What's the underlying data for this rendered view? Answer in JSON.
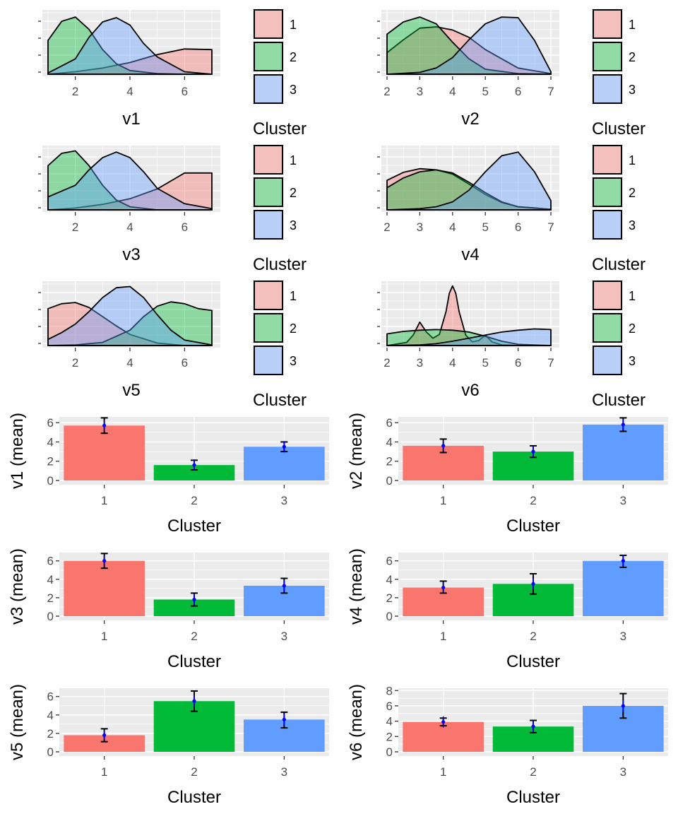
{
  "cluster_colors": {
    "1": "#F8766D",
    "2": "#00BA38",
    "3": "#619CFF"
  },
  "legend": {
    "title": "Cluster",
    "labels": [
      "1",
      "2",
      "3"
    ]
  },
  "chart_data": [
    {
      "type": "area",
      "xlabel": "v1",
      "xticks": [
        2,
        4,
        6
      ],
      "xlim": [
        1,
        7
      ],
      "series": [
        {
          "name": "1",
          "x": [
            1,
            2,
            3,
            4,
            5,
            6,
            7
          ],
          "y": [
            0.0,
            0.04,
            0.1,
            0.19,
            0.32,
            0.41,
            0.4
          ]
        },
        {
          "name": "2",
          "x": [
            1,
            1.5,
            2,
            2.5,
            3,
            3.5,
            4,
            5,
            6,
            7
          ],
          "y": [
            0.55,
            0.86,
            0.93,
            0.73,
            0.4,
            0.17,
            0.06,
            0.01,
            0.0,
            0.0
          ]
        },
        {
          "name": "3",
          "x": [
            1,
            2,
            2.5,
            3,
            3.5,
            4,
            4.5,
            5,
            6,
            7
          ],
          "y": [
            0.02,
            0.25,
            0.6,
            0.85,
            0.92,
            0.8,
            0.5,
            0.28,
            0.04,
            0.0
          ]
        }
      ]
    },
    {
      "type": "area",
      "xlabel": "v2",
      "xticks": [
        2,
        3,
        4,
        5,
        6,
        7
      ],
      "xlim": [
        2,
        7
      ],
      "series": [
        {
          "name": "1",
          "x": [
            2,
            2.5,
            3,
            3.5,
            4,
            4.5,
            5,
            6,
            7
          ],
          "y": [
            0.35,
            0.56,
            0.75,
            0.77,
            0.72,
            0.6,
            0.4,
            0.1,
            0.01
          ]
        },
        {
          "name": "2",
          "x": [
            2,
            2.5,
            3,
            3.5,
            4,
            4.5,
            5,
            6,
            7
          ],
          "y": [
            0.65,
            0.85,
            0.93,
            0.82,
            0.52,
            0.25,
            0.08,
            0.01,
            0.0
          ]
        },
        {
          "name": "3",
          "x": [
            2,
            3,
            3.5,
            4,
            4.5,
            5,
            5.5,
            6,
            6.5,
            7
          ],
          "y": [
            0.0,
            0.03,
            0.1,
            0.27,
            0.56,
            0.82,
            0.93,
            0.92,
            0.55,
            0.04
          ]
        }
      ]
    },
    {
      "type": "area",
      "xlabel": "v3",
      "xticks": [
        2,
        4,
        6
      ],
      "xlim": [
        1,
        7
      ],
      "series": [
        {
          "name": "1",
          "x": [
            1,
            2,
            3,
            4,
            5,
            6,
            7
          ],
          "y": [
            0.0,
            0.03,
            0.09,
            0.18,
            0.34,
            0.6,
            0.6
          ]
        },
        {
          "name": "2",
          "x": [
            1,
            1.5,
            2,
            2.5,
            3,
            3.5,
            4,
            5,
            6,
            7
          ],
          "y": [
            0.72,
            0.92,
            0.96,
            0.72,
            0.4,
            0.16,
            0.05,
            0.0,
            0.0,
            0.0
          ]
        },
        {
          "name": "3",
          "x": [
            1,
            2,
            2.5,
            3,
            3.5,
            4,
            4.5,
            5,
            6,
            7
          ],
          "y": [
            0.21,
            0.4,
            0.65,
            0.85,
            0.94,
            0.85,
            0.62,
            0.35,
            0.1,
            0.02
          ]
        }
      ]
    },
    {
      "type": "area",
      "xlabel": "v4",
      "xticks": [
        2,
        3,
        4,
        5,
        6,
        7
      ],
      "xlim": [
        2,
        7
      ],
      "series": [
        {
          "name": "1",
          "x": [
            2,
            2.5,
            3,
            3.5,
            4,
            4.5,
            5,
            5.5,
            6,
            7
          ],
          "y": [
            0.48,
            0.61,
            0.67,
            0.65,
            0.58,
            0.42,
            0.25,
            0.12,
            0.05,
            0.01
          ]
        },
        {
          "name": "2",
          "x": [
            2,
            2.5,
            3,
            3.5,
            4,
            4.5,
            5,
            5.5,
            6,
            7
          ],
          "y": [
            0.36,
            0.52,
            0.62,
            0.65,
            0.6,
            0.45,
            0.28,
            0.13,
            0.05,
            0.01
          ]
        },
        {
          "name": "3",
          "x": [
            2,
            3,
            3.5,
            4,
            4.5,
            5,
            5.5,
            6,
            6.5,
            7
          ],
          "y": [
            0.0,
            0.02,
            0.05,
            0.13,
            0.32,
            0.62,
            0.88,
            0.94,
            0.62,
            0.15
          ]
        }
      ]
    },
    {
      "type": "area",
      "xlabel": "v5",
      "xticks": [
        2,
        4,
        6
      ],
      "xlim": [
        1,
        7
      ],
      "series": [
        {
          "name": "1",
          "x": [
            1,
            1.5,
            2,
            2.5,
            3,
            3.5,
            4,
            5,
            6,
            7
          ],
          "y": [
            0.6,
            0.68,
            0.7,
            0.62,
            0.47,
            0.32,
            0.18,
            0.04,
            0.0,
            0.0
          ]
        },
        {
          "name": "2",
          "x": [
            1,
            2,
            3,
            4,
            4.5,
            5,
            5.5,
            6,
            6.5,
            7
          ],
          "y": [
            0.0,
            0.01,
            0.05,
            0.25,
            0.47,
            0.64,
            0.71,
            0.68,
            0.6,
            0.57
          ]
        },
        {
          "name": "3",
          "x": [
            1,
            1.5,
            2,
            2.5,
            3,
            3.5,
            4,
            4.5,
            5,
            5.5,
            6,
            7
          ],
          "y": [
            0.1,
            0.21,
            0.35,
            0.55,
            0.78,
            0.94,
            0.96,
            0.78,
            0.5,
            0.25,
            0.09,
            0.01
          ]
        }
      ]
    },
    {
      "type": "area",
      "xlabel": "v6",
      "xticks": [
        2,
        3,
        4,
        5,
        6,
        7
      ],
      "xlim": [
        2,
        7
      ],
      "series": [
        {
          "name": "1",
          "x": [
            2,
            2.6,
            2.8,
            3,
            3.2,
            3.4,
            3.6,
            3.8,
            3.9,
            4,
            4.1,
            4.2,
            4.4,
            4.6,
            4.8,
            5,
            5.2,
            5.5,
            6,
            7
          ],
          "y": [
            0.0,
            0.05,
            0.17,
            0.38,
            0.22,
            0.12,
            0.18,
            0.55,
            0.85,
            0.97,
            0.85,
            0.55,
            0.17,
            0.06,
            0.08,
            0.17,
            0.06,
            0.01,
            0.0,
            0.0
          ]
        },
        {
          "name": "2",
          "x": [
            2,
            2.5,
            3,
            3.5,
            4,
            4.5,
            5,
            5.5,
            6,
            7
          ],
          "y": [
            0.19,
            0.23,
            0.25,
            0.26,
            0.25,
            0.22,
            0.15,
            0.07,
            0.02,
            0.0
          ]
        },
        {
          "name": "3",
          "x": [
            2,
            3,
            3.5,
            4,
            4.5,
            5,
            5.5,
            6,
            6.5,
            7
          ],
          "y": [
            0.0,
            0.01,
            0.03,
            0.07,
            0.12,
            0.17,
            0.22,
            0.25,
            0.27,
            0.26
          ]
        }
      ]
    },
    {
      "type": "bar",
      "categories": [
        "1",
        "2",
        "3"
      ],
      "values": [
        5.7,
        1.6,
        3.5
      ],
      "errors": [
        [
          4.9,
          6.5
        ],
        [
          1.1,
          2.1
        ],
        [
          3.0,
          4.0
        ]
      ],
      "ylim": [
        0,
        6.6
      ],
      "yticks": [
        0,
        2,
        4,
        6
      ],
      "xlabel": "Cluster",
      "ylabel": "v1 (mean)"
    },
    {
      "type": "bar",
      "categories": [
        "1",
        "2",
        "3"
      ],
      "values": [
        3.6,
        3.0,
        5.8
      ],
      "errors": [
        [
          2.9,
          4.3
        ],
        [
          2.4,
          3.6
        ],
        [
          5.1,
          6.5
        ]
      ],
      "ylim": [
        0,
        6.6
      ],
      "yticks": [
        0,
        2,
        4,
        6
      ],
      "xlabel": "Cluster",
      "ylabel": "v2 (mean)"
    },
    {
      "type": "bar",
      "categories": [
        "1",
        "2",
        "3"
      ],
      "values": [
        6.0,
        1.8,
        3.3
      ],
      "errors": [
        [
          5.2,
          6.8
        ],
        [
          1.1,
          2.5
        ],
        [
          2.5,
          4.1
        ]
      ],
      "ylim": [
        0,
        6.9
      ],
      "yticks": [
        0,
        2,
        4,
        6
      ],
      "xlabel": "Cluster",
      "ylabel": "v3 (mean)"
    },
    {
      "type": "bar",
      "categories": [
        "1",
        "2",
        "3"
      ],
      "values": [
        3.1,
        3.5,
        6.0
      ],
      "errors": [
        [
          2.5,
          3.8
        ],
        [
          2.4,
          4.6
        ],
        [
          5.3,
          6.6
        ]
      ],
      "ylim": [
        0,
        6.9
      ],
      "yticks": [
        0,
        2,
        4,
        6
      ],
      "xlabel": "Cluster",
      "ylabel": "v4 (mean)"
    },
    {
      "type": "bar",
      "categories": [
        "1",
        "2",
        "3"
      ],
      "values": [
        1.8,
        5.5,
        3.5
      ],
      "errors": [
        [
          1.1,
          2.5
        ],
        [
          4.4,
          6.6
        ],
        [
          2.6,
          4.3
        ]
      ],
      "ylim": [
        0,
        6.9
      ],
      "yticks": [
        0,
        2,
        4,
        6
      ],
      "xlabel": "Cluster",
      "ylabel": "v5 (mean)"
    },
    {
      "type": "bar",
      "categories": [
        "1",
        "2",
        "3"
      ],
      "values": [
        3.9,
        3.3,
        6.0
      ],
      "errors": [
        [
          3.4,
          4.4
        ],
        [
          2.5,
          4.1
        ],
        [
          4.4,
          7.6
        ]
      ],
      "ylim": [
        0,
        8.3
      ],
      "yticks": [
        0,
        2,
        4,
        6,
        8
      ],
      "xlabel": "Cluster",
      "ylabel": "v6 (mean)"
    }
  ]
}
